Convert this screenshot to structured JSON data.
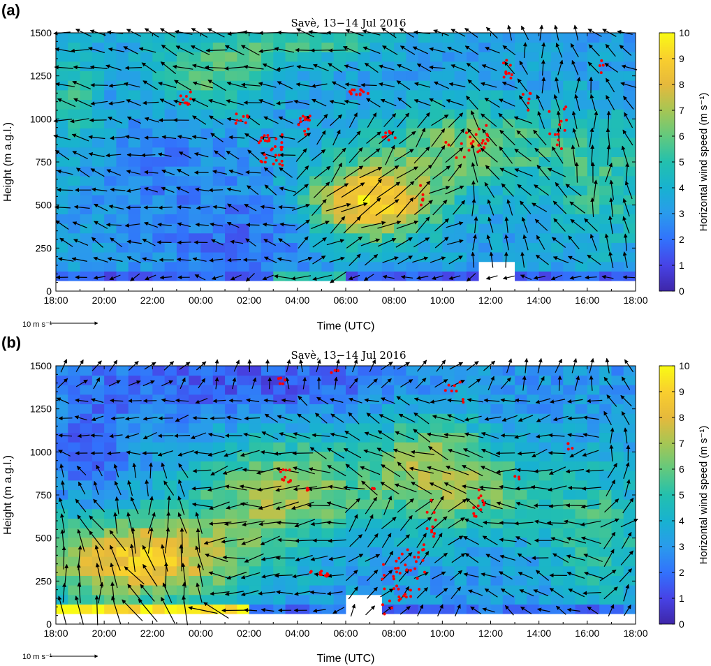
{
  "chart_data": [
    {
      "type": "heatmap",
      "panel_label": "(a)",
      "title": "Savè, 13−14 Jul 2016",
      "xlabel": "Time (UTC)",
      "ylabel": "Height (m a.g.l.)",
      "x_ticks": [
        "18:00",
        "20:00",
        "22:00",
        "00:00",
        "02:00",
        "04:00",
        "06:00",
        "08:00",
        "10:00",
        "12:00",
        "14:00",
        "16:00",
        "18:00"
      ],
      "y_ticks": [
        "0",
        "250",
        "500",
        "750",
        "1000",
        "1250",
        "1500"
      ],
      "xlim_hours": [
        0,
        24
      ],
      "ylim": [
        0,
        1500
      ],
      "colorbar": {
        "label": "Horizontal wind speed (m s⁻¹)",
        "ticks": [
          "0",
          "1",
          "2",
          "3",
          "4",
          "5",
          "6",
          "7",
          "8",
          "9",
          "10"
        ],
        "range": [
          0,
          10
        ]
      },
      "reference_arrow": "10 m s⁻¹",
      "overlays": [
        "wind vectors (black arrows)",
        "cloud-base detections (red dots)"
      ],
      "wind_speed_max_center": {
        "time": "07:00",
        "height": 520,
        "value": 9.5
      }
    },
    {
      "type": "heatmap",
      "panel_label": "(b)",
      "title": "Savè, 13−14 Jul 2016",
      "xlabel": "Time (UTC)",
      "ylabel": "Height (m a.g.l.)",
      "x_ticks": [
        "18:00",
        "20:00",
        "22:00",
        "00:00",
        "02:00",
        "04:00",
        "06:00",
        "08:00",
        "10:00",
        "12:00",
        "14:00",
        "16:00",
        "18:00"
      ],
      "y_ticks": [
        "0",
        "250",
        "500",
        "750",
        "1000",
        "1250",
        "1500"
      ],
      "xlim_hours": [
        0,
        24
      ],
      "ylim": [
        0,
        1500
      ],
      "colorbar": {
        "label": "Horizontal wind speed (m s⁻¹)",
        "ticks": [
          "0",
          "1",
          "2",
          "3",
          "4",
          "5",
          "6",
          "7",
          "8",
          "9",
          "10"
        ],
        "range": [
          0,
          10
        ]
      },
      "reference_arrow": "10 m s⁻¹",
      "overlays": [
        "wind vectors (black arrows)",
        "cloud-base detections (red dots)"
      ],
      "wind_speed_max_center": {
        "time": "21:00",
        "height": 300,
        "value": 9.0
      }
    }
  ]
}
